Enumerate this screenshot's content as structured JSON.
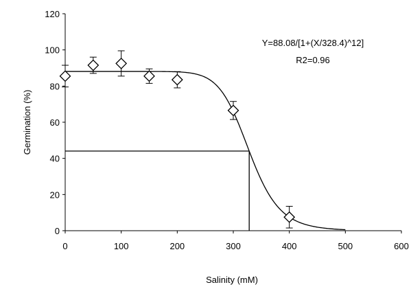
{
  "chart_data": {
    "type": "scatter",
    "title": "",
    "xlabel": "Salinity (mM)",
    "ylabel": "Germination (%)",
    "xlim": [
      0,
      600
    ],
    "ylim": [
      0,
      120
    ],
    "x_ticks": [
      "0",
      "100",
      "200",
      "300",
      "400",
      "500",
      "600"
    ],
    "y_ticks": [
      "0",
      "20",
      "40",
      "60",
      "80",
      "100",
      "120"
    ],
    "grid": false,
    "legend": "none",
    "marker": "diamond",
    "points": [
      {
        "x": 0,
        "y": 85.5,
        "err": 6.0
      },
      {
        "x": 50,
        "y": 91.5,
        "err": 4.5
      },
      {
        "x": 100,
        "y": 92.5,
        "err": 7.0
      },
      {
        "x": 150,
        "y": 85.5,
        "err": 4.0
      },
      {
        "x": 200,
        "y": 83.5,
        "err": 4.5
      },
      {
        "x": 300,
        "y": 66.5,
        "err": 5.0
      },
      {
        "x": 400,
        "y": 7.5,
        "err": 6.0
      }
    ],
    "fit": {
      "a": 88.08,
      "c": 328.4,
      "n": 12,
      "x_min": 0,
      "x_max": 500
    },
    "reference": {
      "x": 328.4,
      "y": 44.04
    },
    "annotations": [
      "Y=88.08/[1+(X/328.4)^12]",
      "R2=0.96"
    ]
  }
}
